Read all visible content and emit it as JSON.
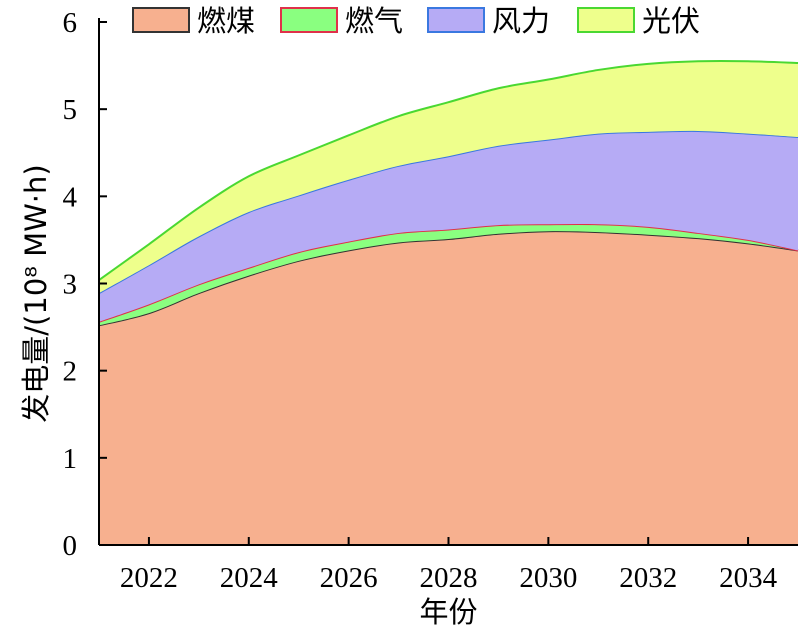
{
  "chart_data": {
    "type": "area",
    "stacked": true,
    "xlabel": "年份",
    "ylabel": "发电量/(10⁸ MW·h)",
    "xlim": [
      2021,
      2035
    ],
    "ylim": [
      0,
      6
    ],
    "x_ticks": [
      "2022",
      "2024",
      "2026",
      "2028",
      "2030",
      "2032",
      "2034"
    ],
    "y_ticks": [
      "0",
      "1",
      "2",
      "3",
      "4",
      "5",
      "6"
    ],
    "legend_position": "top",
    "x": [
      2021,
      2022,
      2023,
      2024,
      2025,
      2026,
      2027,
      2028,
      2029,
      2030,
      2031,
      2032,
      2033,
      2034,
      2035
    ],
    "series": [
      {
        "name": "燃煤",
        "fill": "#f7b08f",
        "stroke": "#333333",
        "values": [
          2.52,
          2.66,
          2.89,
          3.09,
          3.26,
          3.38,
          3.47,
          3.51,
          3.57,
          3.6,
          3.59,
          3.56,
          3.52,
          3.46,
          3.38
        ]
      },
      {
        "name": "燃气",
        "fill": "#8aff80",
        "stroke": "#e0304a",
        "values": [
          0.04,
          0.1,
          0.1,
          0.09,
          0.1,
          0.1,
          0.11,
          0.11,
          0.1,
          0.08,
          0.09,
          0.09,
          0.06,
          0.04,
          0.0
        ]
      },
      {
        "name": "风力",
        "fill": "#b6abf5",
        "stroke": "#3a78e0",
        "values": [
          0.33,
          0.45,
          0.55,
          0.64,
          0.65,
          0.71,
          0.77,
          0.84,
          0.91,
          0.97,
          1.04,
          1.09,
          1.17,
          1.22,
          1.3
        ]
      },
      {
        "name": "光伏",
        "fill": "#eeff8c",
        "stroke": "#4ad832",
        "values": [
          0.15,
          0.24,
          0.33,
          0.41,
          0.46,
          0.51,
          0.57,
          0.62,
          0.66,
          0.69,
          0.73,
          0.78,
          0.8,
          0.83,
          0.85
        ]
      }
    ]
  }
}
